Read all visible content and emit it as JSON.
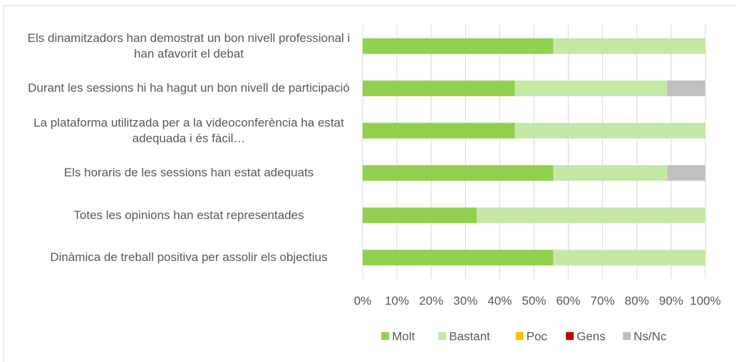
{
  "chart_data": {
    "type": "stacked-bar-horizontal",
    "categories": [
      "Els dinamitzadors han demostrat un bon nivell professional i han afavorit el debat",
      "Durant les sessions hi ha hagut un bon nivell de participació",
      "La plataforma utilitzada per a la videoconferència ha estat adequada i és fàcil…",
      "Els horaris de les sessions han estat adequats",
      "Totes les opinions han estat representades",
      "Dinàmica de treball positiva per assolir els objectius"
    ],
    "series": [
      {
        "name": "Molt",
        "color": "#92d050",
        "values": [
          55.6,
          44.4,
          44.4,
          55.6,
          33.3,
          55.6
        ]
      },
      {
        "name": "Bastant",
        "color": "#c5e8a7",
        "values": [
          44.4,
          44.4,
          55.6,
          33.3,
          66.7,
          44.4
        ]
      },
      {
        "name": "Poc",
        "color": "#ffc000",
        "values": [
          0,
          0,
          0,
          0,
          0,
          0
        ]
      },
      {
        "name": "Gens",
        "color": "#c00000",
        "values": [
          0,
          0,
          0,
          0,
          0,
          0
        ]
      },
      {
        "name": "Ns/Nc",
        "color": "#bfbfbf",
        "values": [
          0,
          11.1,
          0,
          11.1,
          0,
          0
        ]
      }
    ],
    "xlim": [
      0,
      100
    ],
    "xticks": [
      {
        "value": 0,
        "label": "0%"
      },
      {
        "value": 10,
        "label": "10%"
      },
      {
        "value": 20,
        "label": "20%"
      },
      {
        "value": 30,
        "label": "30%"
      },
      {
        "value": 40,
        "label": "40%"
      },
      {
        "value": 50,
        "label": "50%"
      },
      {
        "value": 60,
        "label": "60%"
      },
      {
        "value": 70,
        "label": "70%"
      },
      {
        "value": 80,
        "label": "80%"
      },
      {
        "value": 90,
        "label": "90%"
      },
      {
        "value": 100,
        "label": "100%"
      }
    ],
    "grid": true,
    "legend": "bottom"
  }
}
